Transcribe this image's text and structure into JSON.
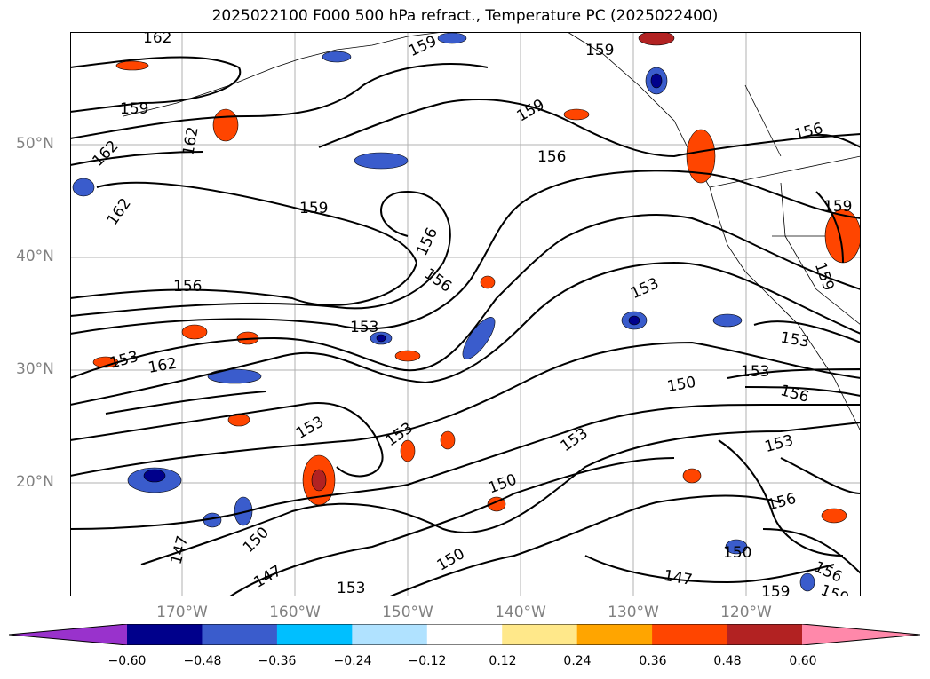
{
  "title": "2025022100 F000 500 hPa refract., Temperature PC (2025022400)",
  "lat_labels": [
    "50°N",
    "40°N",
    "30°N",
    "20°N"
  ],
  "lon_labels": [
    "170°W",
    "160°W",
    "150°W",
    "140°W",
    "130°W",
    "120°W"
  ],
  "contour_labels": [
    "162",
    "162",
    "162",
    "162",
    "159",
    "159",
    "159",
    "159",
    "159",
    "159",
    "159",
    "156",
    "156",
    "156",
    "156",
    "156",
    "156",
    "156",
    "153",
    "153",
    "153",
    "153",
    "153",
    "153",
    "153",
    "153",
    "153",
    "150",
    "150",
    "150",
    "150",
    "147",
    "147",
    "147",
    "162",
    "159",
    "159",
    "156",
    "153",
    "150"
  ],
  "colorbar": {
    "ticks": [
      "−0.60",
      "−0.48",
      "−0.36",
      "−0.24",
      "−0.12",
      "0.12",
      "0.24",
      "0.36",
      "0.48",
      "0.60"
    ],
    "colors": [
      "#9932cc",
      "#00008b",
      "#3a5ccc",
      "#00bfff",
      "#b0e2ff",
      "#ffffff",
      "#ffe88a",
      "#ffa500",
      "#ff4500",
      "#b22222",
      "#ff88aa"
    ]
  }
}
